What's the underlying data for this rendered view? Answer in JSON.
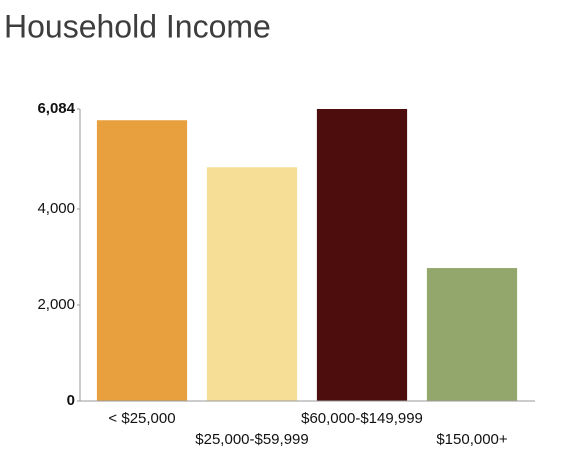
{
  "chart_data": {
    "type": "bar",
    "title": "Household Income",
    "categories": [
      "< $25,000",
      "$25,000-$59,999",
      "$60,000-$149,999",
      "$150,000+"
    ],
    "values": [
      5850,
      4870,
      6084,
      2770
    ],
    "colors": [
      "#e8a03f",
      "#f7de97",
      "#4d0d0d",
      "#93a66c"
    ],
    "ylim": [
      0,
      6084
    ],
    "yticks": [
      0,
      {
        "value": 2000,
        "label": "2,000"
      },
      {
        "value": 4000,
        "label": "4,000"
      },
      {
        "value": 6084,
        "label": "6,084"
      }
    ],
    "grid": false
  }
}
